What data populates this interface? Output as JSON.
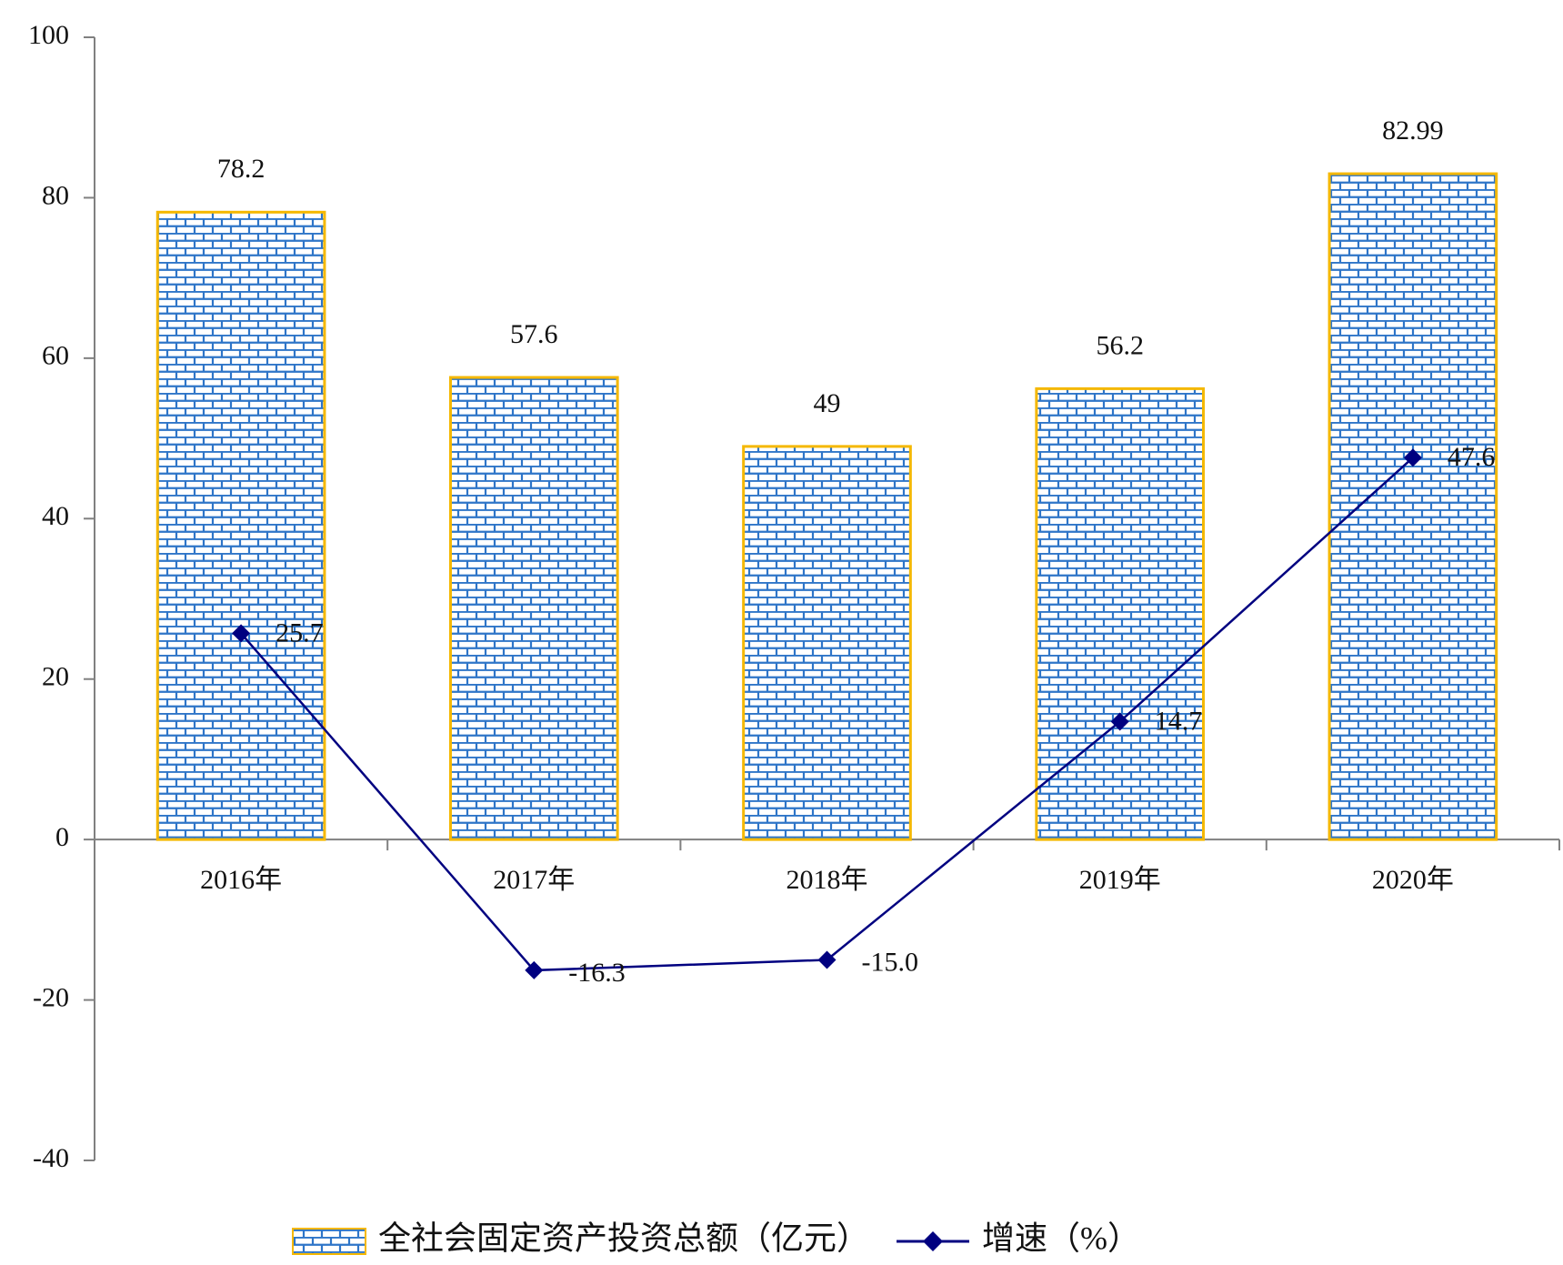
{
  "chart_data": {
    "type": "bar",
    "categories": [
      "2016年",
      "2017年",
      "2018年",
      "2019年",
      "2020年"
    ],
    "series": [
      {
        "name": "全社会固定资产投资总额（亿元）",
        "type": "bar",
        "color": "#2e75c8",
        "edge_color": "#f5b800",
        "values": [
          78.2,
          57.6,
          49,
          56.2,
          82.99
        ]
      },
      {
        "name": "增速（%）",
        "type": "line",
        "color": "#000080",
        "values": [
          25.7,
          -16.3,
          -15.0,
          14.7,
          47.6
        ],
        "value_labels": [
          "25.7",
          "-16.3",
          "-15.0",
          "14.7",
          "47.6"
        ]
      }
    ],
    "negative_label_color": "#ff0000",
    "ylim": [
      -40,
      100
    ],
    "yticks": [
      -40,
      -20,
      0,
      20,
      40,
      60,
      80,
      100
    ],
    "grid": false,
    "legend": "bottom"
  }
}
